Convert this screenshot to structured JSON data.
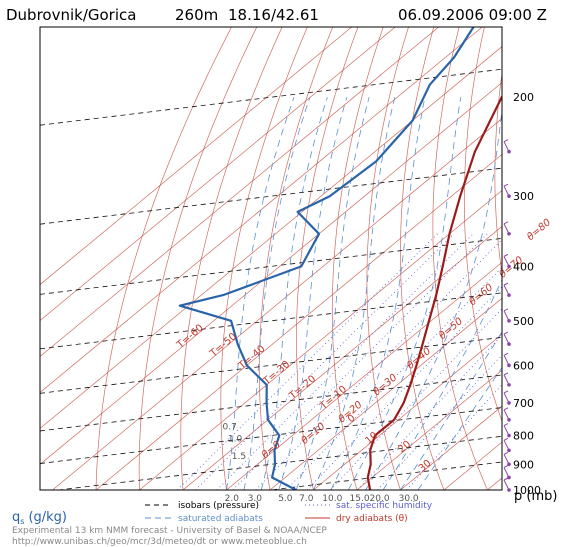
{
  "header": {
    "station": "Dubrovnik/Gorica",
    "elevation": "260m",
    "coords": "18.16/42.61",
    "datetime": "06.09.2006 09:00 Z"
  },
  "axis": {
    "p_unit": "p (mb)",
    "q_unit": "q",
    "q_subscript": "s",
    "q_units": "(g/kg)"
  },
  "legend": {
    "isobars": "isobars (pressure)",
    "saturated_adiabats": "saturated adiabats",
    "specific_humidity": "sat. specific humidity",
    "dry_adiabats": "dry adiabats (θ)"
  },
  "footer": {
    "line1": "Experimental 13 km NMM forecast - University of Basel & NOAA/NCEP",
    "line2": "http://www.unibas.ch/geo/mcr/3d/meteo/dt   or   www.meteoblue.ch"
  },
  "colors": {
    "temperature": "#9b1b1b",
    "dewpoint": "#2a64a8",
    "isotherm": "#c0392b",
    "sat_adiabat": "#5b8fd0",
    "humidity": "#5b5bd6",
    "wind": "#8e44ad"
  },
  "chart_data": {
    "type": "line",
    "title": "Dubrovnik/Gorica 260m 18.16/42.61 06.09.2006 09:00 Z",
    "xlabel": "q (g/kg)",
    "ylabel": "p (mb)",
    "y_scale": "log",
    "ylim": [
      1000,
      150
    ],
    "pressure_ticks": [
      200,
      300,
      400,
      500,
      600,
      700,
      800,
      900,
      1000
    ],
    "q_ticks": [
      "2.0",
      "3.0",
      "5.0",
      "7.0",
      "10.0",
      "15.0",
      "20.0",
      "30.0"
    ],
    "isotherm_labels": [
      "T=-60",
      "T=-50",
      "T=-40",
      "T=-30",
      "T=-20",
      "T=-10",
      "0",
      "10",
      "20",
      "30"
    ],
    "theta_labels": [
      "θ=80",
      "θ=70",
      "θ=60",
      "θ=50",
      "θ=40",
      "θ=30",
      "θ=20",
      "θ=10",
      "θ=0"
    ],
    "q_line_labels": [
      "0.7",
      "1.0",
      "1.5"
    ],
    "series": [
      {
        "name": "temperature",
        "p": [
          150,
          200,
          250,
          300,
          350,
          400,
          450,
          500,
          550,
          600,
          650,
          700,
          750,
          800,
          850,
          900,
          950,
          1000
        ],
        "T": [
          -50,
          -56,
          -47,
          -38,
          -30,
          -22.5,
          -16,
          -10.5,
          -5.5,
          -1,
          3,
          6.5,
          9,
          9,
          12,
          16,
          19,
          23
        ]
      },
      {
        "name": "dewpoint",
        "p": [
          150,
          170,
          190,
          220,
          260,
          300,
          320,
          350,
          400,
          450,
          470,
          500,
          550,
          600,
          650,
          700,
          750,
          800,
          850,
          900,
          950,
          1000
        ],
        "Td": [
          -82,
          -78,
          -76,
          -70,
          -67,
          -68,
          -71,
          -60,
          -55,
          -65,
          -72,
          -56,
          -48,
          -40,
          -30,
          -25,
          -20,
          -13,
          -10,
          -6,
          -3,
          6
        ]
      }
    ],
    "wind_barbs": [
      250,
      300,
      350,
      400,
      450,
      500,
      550,
      600,
      650,
      700,
      750,
      800,
      850,
      900,
      950,
      1000
    ]
  }
}
